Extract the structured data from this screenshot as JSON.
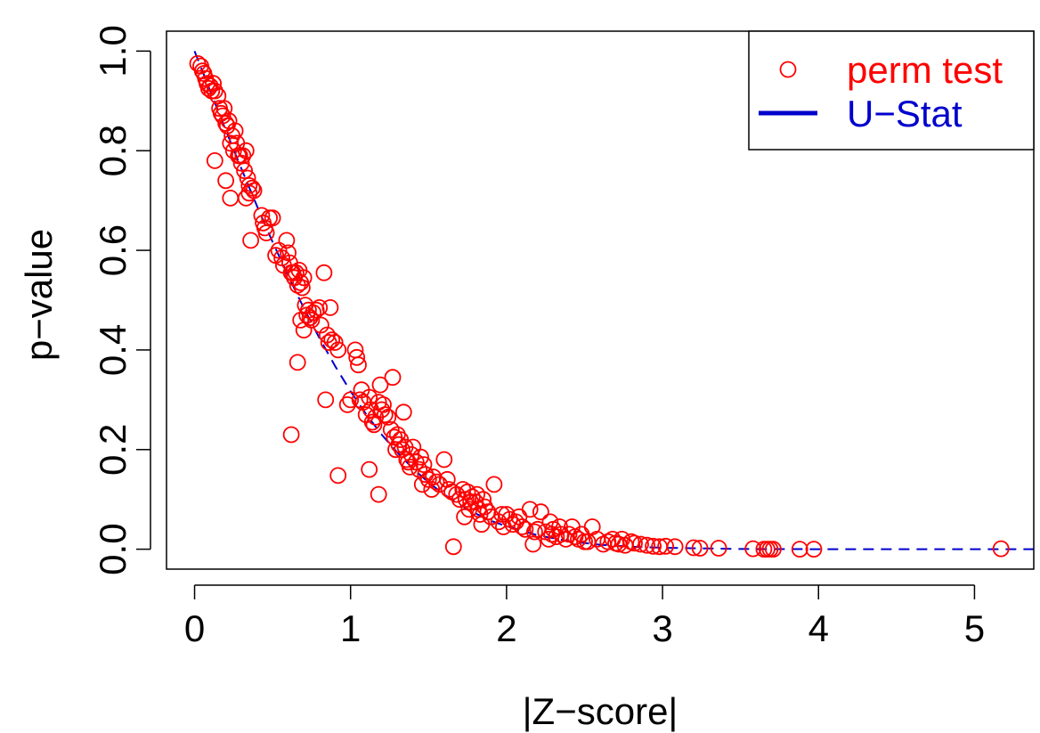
{
  "chart_data": {
    "type": "scatter",
    "xlabel": "|Z−score|",
    "ylabel": "p−value",
    "xlim": [
      -0.18,
      5.38
    ],
    "ylim": [
      -0.04,
      1.04
    ],
    "xticks": [
      {
        "value": 0,
        "label": "0"
      },
      {
        "value": 1,
        "label": "1"
      },
      {
        "value": 2,
        "label": "2"
      },
      {
        "value": 3,
        "label": "3"
      },
      {
        "value": 4,
        "label": "4"
      },
      {
        "value": 5,
        "label": "5"
      }
    ],
    "yticks": [
      {
        "value": 0.0,
        "label": "0.0"
      },
      {
        "value": 0.2,
        "label": "0.2"
      },
      {
        "value": 0.4,
        "label": "0.4"
      },
      {
        "value": 0.6,
        "label": "0.6"
      },
      {
        "value": 0.8,
        "label": "0.8"
      },
      {
        "value": 1.0,
        "label": "1.0"
      }
    ],
    "grid": false,
    "legend": {
      "placement": "top-right",
      "entries": [
        {
          "label": "perm test",
          "color": "#ff0000",
          "marker": "open-circle"
        },
        {
          "label": "U−Stat",
          "color": "#0000cd",
          "marker": "line"
        }
      ]
    },
    "series": [
      {
        "name": "perm test",
        "kind": "scatter",
        "color": "#ff0000",
        "marker": "open-circle",
        "points": [
          [
            0.02,
            0.975
          ],
          [
            0.04,
            0.97
          ],
          [
            0.05,
            0.96
          ],
          [
            0.06,
            0.955
          ],
          [
            0.07,
            0.945
          ],
          [
            0.08,
            0.935
          ],
          [
            0.09,
            0.925
          ],
          [
            0.1,
            0.93
          ],
          [
            0.11,
            0.92
          ],
          [
            0.12,
            0.935
          ],
          [
            0.13,
            0.92
          ],
          [
            0.15,
            0.91
          ],
          [
            0.16,
            0.885
          ],
          [
            0.17,
            0.875
          ],
          [
            0.18,
            0.87
          ],
          [
            0.19,
            0.885
          ],
          [
            0.2,
            0.855
          ],
          [
            0.21,
            0.85
          ],
          [
            0.22,
            0.86
          ],
          [
            0.23,
            0.815
          ],
          [
            0.24,
            0.83
          ],
          [
            0.25,
            0.8
          ],
          [
            0.26,
            0.84
          ],
          [
            0.27,
            0.815
          ],
          [
            0.28,
            0.79
          ],
          [
            0.29,
            0.79
          ],
          [
            0.3,
            0.775
          ],
          [
            0.31,
            0.79
          ],
          [
            0.32,
            0.76
          ],
          [
            0.33,
            0.8
          ],
          [
            0.34,
            0.745
          ],
          [
            0.35,
            0.73
          ],
          [
            0.37,
            0.725
          ],
          [
            0.38,
            0.72
          ],
          [
            0.13,
            0.78
          ],
          [
            0.2,
            0.74
          ],
          [
            0.23,
            0.705
          ],
          [
            0.33,
            0.705
          ],
          [
            0.35,
            0.715
          ],
          [
            0.36,
            0.62
          ],
          [
            0.43,
            0.67
          ],
          [
            0.44,
            0.655
          ],
          [
            0.45,
            0.645
          ],
          [
            0.46,
            0.635
          ],
          [
            0.48,
            0.665
          ],
          [
            0.5,
            0.665
          ],
          [
            0.52,
            0.59
          ],
          [
            0.54,
            0.6
          ],
          [
            0.56,
            0.585
          ],
          [
            0.57,
            0.57
          ],
          [
            0.59,
            0.62
          ],
          [
            0.6,
            0.595
          ],
          [
            0.61,
            0.575
          ],
          [
            0.62,
            0.555
          ],
          [
            0.63,
            0.555
          ],
          [
            0.64,
            0.545
          ],
          [
            0.65,
            0.555
          ],
          [
            0.66,
            0.53
          ],
          [
            0.67,
            0.56
          ],
          [
            0.68,
            0.535
          ],
          [
            0.69,
            0.525
          ],
          [
            0.7,
            0.545
          ],
          [
            0.71,
            0.49
          ],
          [
            0.72,
            0.47
          ],
          [
            0.73,
            0.48
          ],
          [
            0.74,
            0.465
          ],
          [
            0.75,
            0.46
          ],
          [
            0.76,
            0.475
          ],
          [
            0.78,
            0.48
          ],
          [
            0.8,
            0.485
          ],
          [
            0.81,
            0.45
          ],
          [
            0.83,
            0.555
          ],
          [
            0.85,
            0.43
          ],
          [
            0.86,
            0.415
          ],
          [
            0.87,
            0.485
          ],
          [
            0.88,
            0.42
          ],
          [
            0.9,
            0.415
          ],
          [
            0.92,
            0.4
          ],
          [
            0.68,
            0.46
          ],
          [
            0.7,
            0.44
          ],
          [
            0.66,
            0.375
          ],
          [
            0.62,
            0.23
          ],
          [
            0.84,
            0.3
          ],
          [
            0.92,
            0.148
          ],
          [
            1.03,
            0.4
          ],
          [
            1.04,
            0.385
          ],
          [
            1.05,
            0.37
          ],
          [
            1.06,
            0.3
          ],
          [
            1.07,
            0.32
          ],
          [
            1.08,
            0.295
          ],
          [
            1.1,
            0.27
          ],
          [
            1.12,
            0.305
          ],
          [
            1.13,
            0.28
          ],
          [
            1.14,
            0.255
          ],
          [
            1.15,
            0.25
          ],
          [
            1.16,
            0.265
          ],
          [
            1.18,
            0.295
          ],
          [
            1.19,
            0.33
          ],
          [
            1.2,
            0.28
          ],
          [
            1.21,
            0.29
          ],
          [
            1.22,
            0.27
          ],
          [
            1.24,
            0.265
          ],
          [
            1.26,
            0.24
          ],
          [
            1.27,
            0.345
          ],
          [
            1.28,
            0.225
          ],
          [
            1.29,
            0.2
          ],
          [
            1.3,
            0.23
          ],
          [
            1.31,
            0.21
          ],
          [
            1.32,
            0.22
          ],
          [
            1.33,
            0.2
          ],
          [
            1.34,
            0.275
          ],
          [
            1.35,
            0.205
          ],
          [
            1.36,
            0.18
          ],
          [
            1.37,
            0.175
          ],
          [
            1.38,
            0.165
          ],
          [
            1.39,
            0.19
          ],
          [
            1.4,
            0.205
          ],
          [
            1.42,
            0.175
          ],
          [
            1.44,
            0.16
          ],
          [
            1.45,
            0.185
          ],
          [
            1.46,
            0.13
          ],
          [
            1.47,
            0.17
          ],
          [
            1.48,
            0.15
          ],
          [
            1.5,
            0.14
          ],
          [
            1.52,
            0.12
          ],
          [
            1.53,
            0.145
          ],
          [
            1.55,
            0.135
          ],
          [
            1.57,
            0.13
          ],
          [
            1.6,
            0.18
          ],
          [
            1.62,
            0.14
          ],
          [
            1.63,
            0.12
          ],
          [
            1.65,
            0.115
          ],
          [
            1.12,
            0.16
          ],
          [
            1.18,
            0.11
          ],
          [
            0.98,
            0.29
          ],
          [
            1.0,
            0.3
          ],
          [
            1.66,
            0.005
          ],
          [
            1.68,
            0.11
          ],
          [
            1.7,
            0.1
          ],
          [
            1.72,
            0.12
          ],
          [
            1.73,
            0.065
          ],
          [
            1.74,
            0.1
          ],
          [
            1.75,
            0.115
          ],
          [
            1.76,
            0.08
          ],
          [
            1.77,
            0.095
          ],
          [
            1.78,
            0.105
          ],
          [
            1.8,
            0.095
          ],
          [
            1.81,
            0.11
          ],
          [
            1.82,
            0.08
          ],
          [
            1.83,
            0.07
          ],
          [
            1.84,
            0.05
          ],
          [
            1.85,
            0.1
          ],
          [
            1.86,
            0.085
          ],
          [
            1.88,
            0.075
          ],
          [
            1.9,
            0.065
          ],
          [
            1.92,
            0.13
          ],
          [
            1.95,
            0.055
          ],
          [
            1.97,
            0.07
          ],
          [
            1.98,
            0.045
          ],
          [
            2.0,
            0.07
          ],
          [
            2.02,
            0.06
          ],
          [
            2.04,
            0.05
          ],
          [
            2.06,
            0.055
          ],
          [
            2.08,
            0.065
          ],
          [
            2.1,
            0.045
          ],
          [
            2.12,
            0.04
          ],
          [
            2.15,
            0.08
          ],
          [
            2.17,
            0.01
          ],
          [
            2.18,
            0.035
          ],
          [
            2.2,
            0.04
          ],
          [
            2.22,
            0.075
          ],
          [
            2.25,
            0.035
          ],
          [
            2.27,
            0.02
          ],
          [
            2.28,
            0.055
          ],
          [
            2.29,
            0.03
          ],
          [
            2.3,
            0.04
          ],
          [
            2.32,
            0.025
          ],
          [
            2.34,
            0.045
          ],
          [
            2.35,
            0.03
          ],
          [
            2.38,
            0.02
          ],
          [
            2.4,
            0.03
          ],
          [
            2.42,
            0.045
          ],
          [
            2.44,
            0.025
          ],
          [
            2.46,
            0.02
          ],
          [
            2.48,
            0.03
          ],
          [
            2.5,
            0.015
          ],
          [
            2.52,
            0.015
          ],
          [
            2.55,
            0.045
          ],
          [
            2.58,
            0.02
          ],
          [
            2.62,
            0.01
          ],
          [
            2.65,
            0.015
          ],
          [
            2.68,
            0.02
          ],
          [
            2.7,
            0.012
          ],
          [
            2.72,
            0.01
          ],
          [
            2.74,
            0.02
          ],
          [
            2.76,
            0.008
          ],
          [
            2.8,
            0.015
          ],
          [
            2.82,
            0.012
          ],
          [
            2.86,
            0.01
          ],
          [
            2.9,
            0.008
          ],
          [
            2.94,
            0.006
          ],
          [
            2.98,
            0.005
          ],
          [
            3.02,
            0.006
          ],
          [
            3.08,
            0.005
          ],
          [
            3.2,
            0.003
          ],
          [
            3.24,
            0.002
          ],
          [
            3.36,
            0.002
          ],
          [
            3.58,
            0.001
          ],
          [
            3.65,
            0.0
          ],
          [
            3.67,
            0.0
          ],
          [
            3.69,
            0.0
          ],
          [
            3.71,
            0.0
          ],
          [
            3.88,
            0.0
          ],
          [
            3.97,
            0.0
          ],
          [
            5.17,
            0.001
          ]
        ]
      },
      {
        "name": "U−Stat",
        "kind": "line",
        "color": "#0000cd",
        "line_style": "dashed",
        "points": [
          [
            0.0,
            1.0
          ],
          [
            0.1,
            0.92
          ],
          [
            0.2,
            0.841
          ],
          [
            0.3,
            0.764
          ],
          [
            0.4,
            0.689
          ],
          [
            0.5,
            0.617
          ],
          [
            0.6,
            0.549
          ],
          [
            0.7,
            0.484
          ],
          [
            0.8,
            0.424
          ],
          [
            0.9,
            0.368
          ],
          [
            1.0,
            0.317
          ],
          [
            1.1,
            0.271
          ],
          [
            1.2,
            0.23
          ],
          [
            1.3,
            0.194
          ],
          [
            1.4,
            0.162
          ],
          [
            1.5,
            0.134
          ],
          [
            1.6,
            0.11
          ],
          [
            1.7,
            0.089
          ],
          [
            1.8,
            0.072
          ],
          [
            1.9,
            0.057
          ],
          [
            2.0,
            0.046
          ],
          [
            2.2,
            0.028
          ],
          [
            2.4,
            0.016
          ],
          [
            2.6,
            0.009
          ],
          [
            2.8,
            0.005
          ],
          [
            3.0,
            0.003
          ],
          [
            3.5,
            0.0005
          ],
          [
            4.0,
            0.0001
          ],
          [
            5.0,
            0.0
          ],
          [
            5.38,
            0.0
          ]
        ]
      }
    ]
  }
}
